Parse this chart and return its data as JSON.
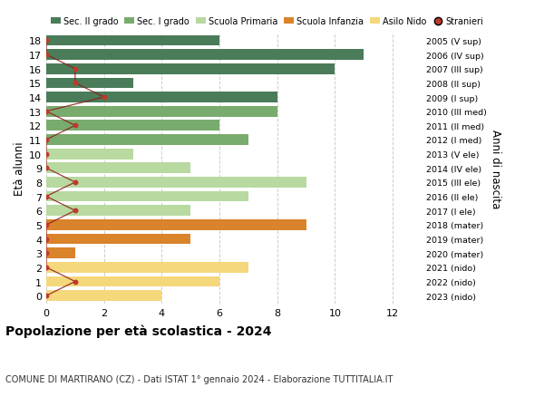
{
  "ages": [
    18,
    17,
    16,
    15,
    14,
    13,
    12,
    11,
    10,
    9,
    8,
    7,
    6,
    5,
    4,
    3,
    2,
    1,
    0
  ],
  "right_labels": [
    "2005 (V sup)",
    "2006 (IV sup)",
    "2007 (III sup)",
    "2008 (II sup)",
    "2009 (I sup)",
    "2010 (III med)",
    "2011 (II med)",
    "2012 (I med)",
    "2013 (V ele)",
    "2014 (IV ele)",
    "2015 (III ele)",
    "2016 (II ele)",
    "2017 (I ele)",
    "2018 (mater)",
    "2019 (mater)",
    "2020 (mater)",
    "2021 (nido)",
    "2022 (nido)",
    "2023 (nido)"
  ],
  "bar_values": [
    6,
    11,
    10,
    3,
    8,
    8,
    6,
    7,
    3,
    5,
    9,
    7,
    5,
    9,
    5,
    1,
    7,
    6,
    4
  ],
  "bar_colors": [
    "#4a7c59",
    "#4a7c59",
    "#4a7c59",
    "#4a7c59",
    "#4a7c59",
    "#7aab6e",
    "#7aab6e",
    "#7aab6e",
    "#b8d9a0",
    "#b8d9a0",
    "#b8d9a0",
    "#b8d9a0",
    "#b8d9a0",
    "#d9832b",
    "#d9832b",
    "#d9832b",
    "#f5d87c",
    "#f5d87c",
    "#f5d87c"
  ],
  "stranieri_values": [
    0,
    0,
    1,
    1,
    2,
    0,
    1,
    0,
    0,
    0,
    1,
    0,
    1,
    0,
    0,
    0,
    0,
    1,
    0
  ],
  "legend_labels": [
    "Sec. II grado",
    "Sec. I grado",
    "Scuola Primaria",
    "Scuola Infanzia",
    "Asilo Nido",
    "Stranieri"
  ],
  "legend_colors": [
    "#4a7c59",
    "#7aab6e",
    "#b8d9a0",
    "#d9832b",
    "#f5d87c",
    "#c0392b"
  ],
  "title": "Popolazione per età scolastica - 2024",
  "subtitle": "COMUNE DI MARTIRANO (CZ) - Dati ISTAT 1° gennaio 2024 - Elaborazione TUTTITALIA.IT",
  "ylabel_left": "Età alunni",
  "ylabel_right": "Anni di nascita",
  "xlim": [
    0,
    13
  ],
  "xticks": [
    0,
    2,
    4,
    6,
    8,
    10,
    12
  ],
  "ylim": [
    -0.55,
    18.55
  ],
  "background_color": "#ffffff",
  "grid_color": "#cccccc"
}
